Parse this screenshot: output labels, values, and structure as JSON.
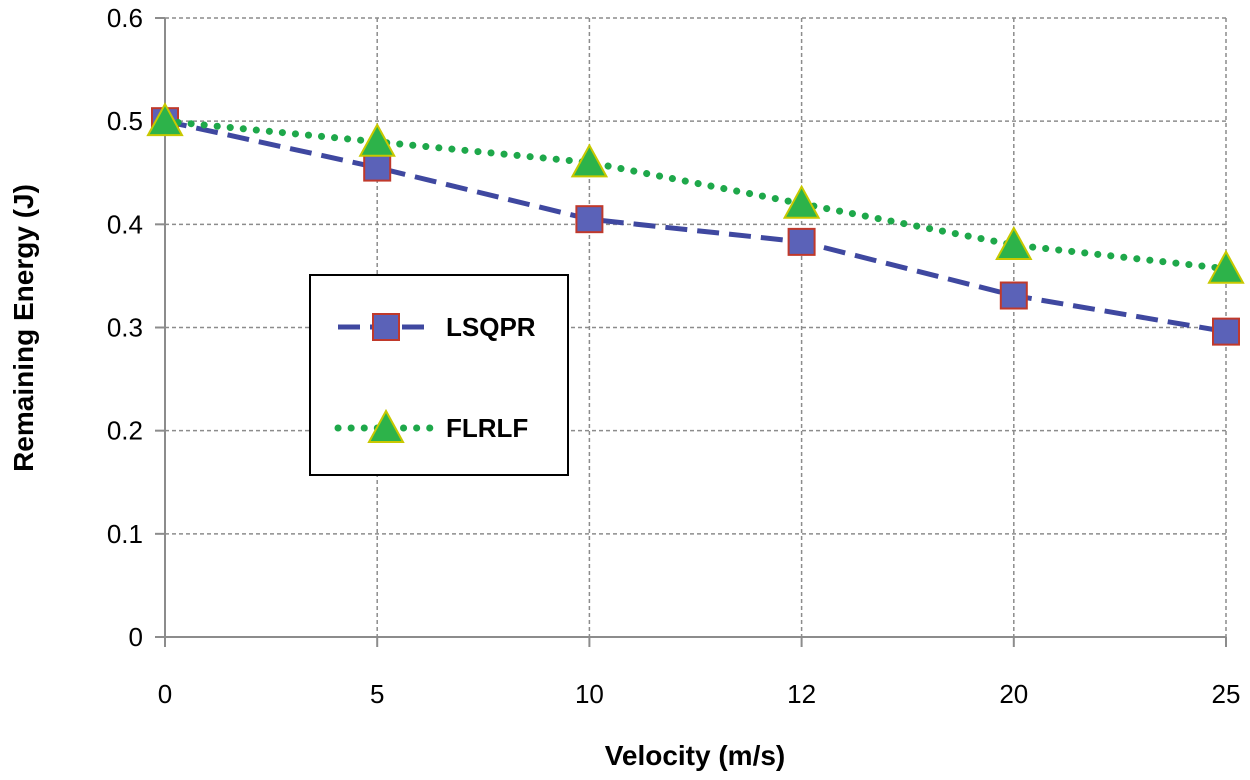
{
  "chart_data": {
    "type": "line",
    "title": "",
    "xlabel": "Velocity (m/s)",
    "ylabel": "Remaining Energy (J)",
    "categories": [
      "0",
      "5",
      "10",
      "12",
      "20",
      "25"
    ],
    "ylim": [
      0,
      0.6
    ],
    "yticks": [
      "0",
      "0.1",
      "0.2",
      "0.3",
      "0.4",
      "0.5",
      "0.6"
    ],
    "yticks_values": [
      0,
      0.1,
      0.2,
      0.3,
      0.4,
      0.5,
      0.6
    ],
    "grid": true,
    "legend_position": "center-left",
    "series": [
      {
        "name": "LSQPR",
        "values": [
          0.5,
          0.455,
          0.405,
          0.383,
          0.331,
          0.296
        ],
        "line_color": "#3f48a0",
        "marker": "square",
        "marker_fill": "#5b62b8",
        "marker_edge": "#c0392b",
        "line_style": "dashed"
      },
      {
        "name": "FLRLF",
        "values": [
          0.5,
          0.48,
          0.46,
          0.42,
          0.38,
          0.357
        ],
        "line_color": "#1ea84a",
        "marker": "triangle",
        "marker_fill": "#2db34a",
        "marker_edge": "#c8c800",
        "line_style": "dotted"
      }
    ]
  }
}
